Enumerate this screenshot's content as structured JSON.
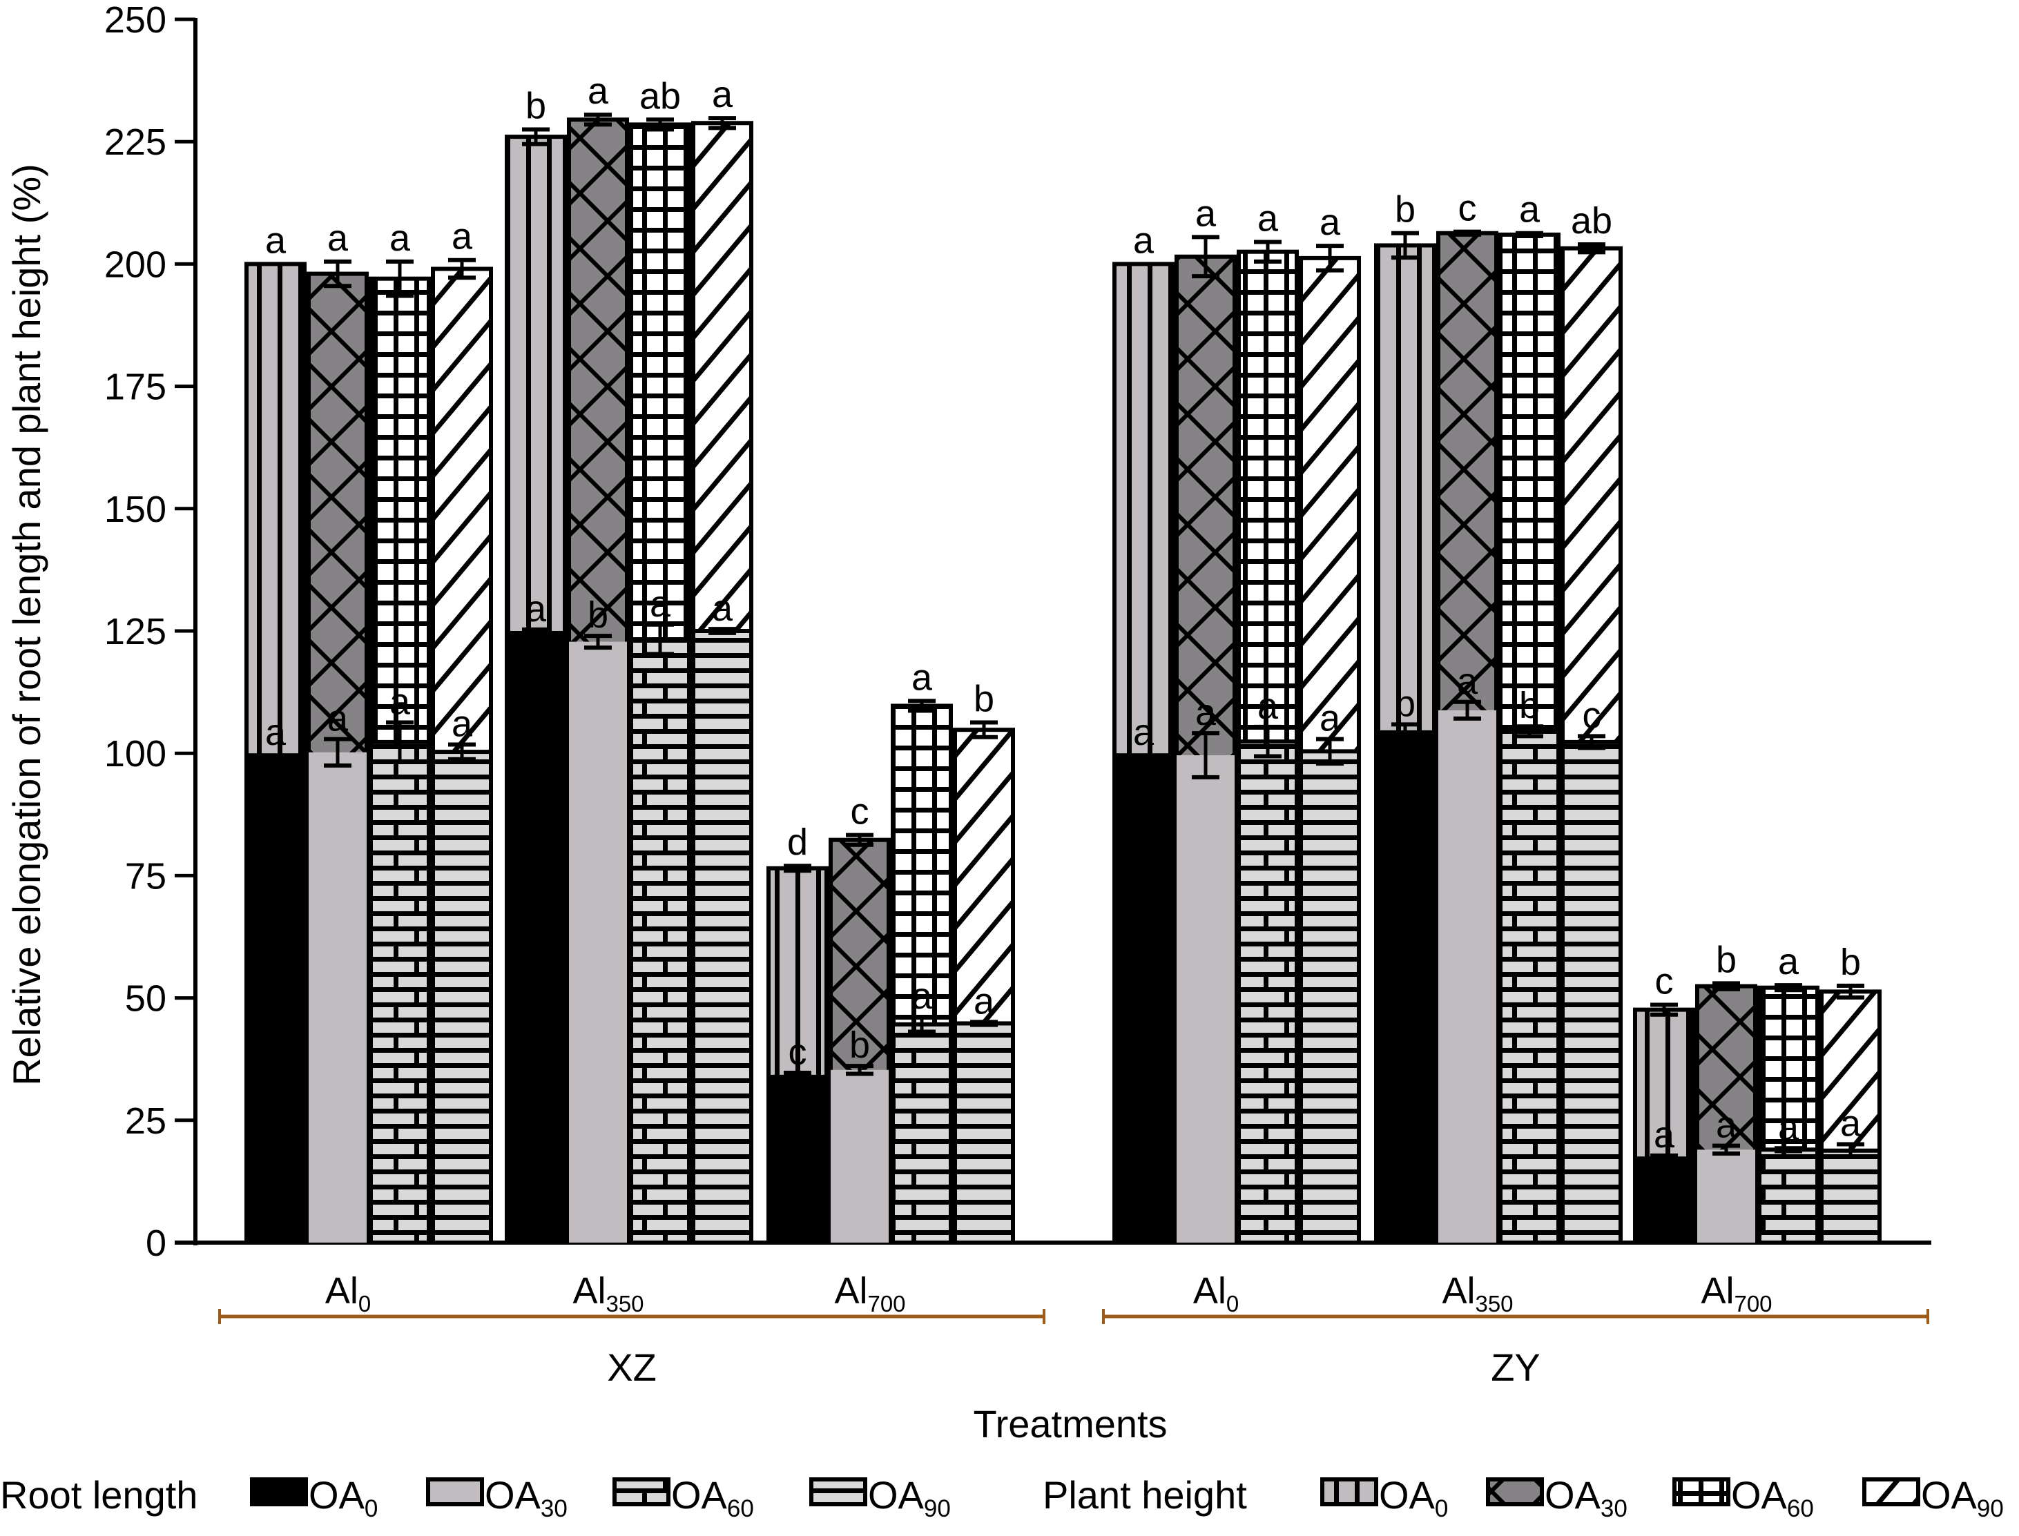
{
  "chart_data": {
    "type": "bar",
    "subtype": "grouped-overlapping",
    "title": "",
    "ylabel": "Relative elongation of root length and plant height (%)",
    "xlabel": "Treatments",
    "ylim": [
      0,
      250
    ],
    "yticks": [
      0,
      25,
      50,
      75,
      100,
      125,
      150,
      175,
      200,
      225,
      250
    ],
    "grid": false,
    "legend_position": "bottom",
    "cultivars": [
      {
        "name": "XZ",
        "categories": [
          {
            "base": "Al",
            "sub": "0"
          },
          {
            "base": "Al",
            "sub": "350"
          },
          {
            "base": "Al",
            "sub": "700"
          }
        ]
      },
      {
        "name": "ZY",
        "categories": [
          {
            "base": "Al",
            "sub": "0"
          },
          {
            "base": "Al",
            "sub": "350"
          },
          {
            "base": "Al",
            "sub": "700"
          }
        ]
      }
    ],
    "oa_levels": [
      {
        "base": "OA",
        "sub": "0"
      },
      {
        "base": "OA",
        "sub": "30"
      },
      {
        "base": "OA",
        "sub": "60"
      },
      {
        "base": "OA",
        "sub": "90"
      }
    ],
    "series": [
      {
        "name": "Plant height",
        "note": "Bars drawn behind root length bars",
        "values": [
          [
            [
              200,
              198,
              197,
              199
            ],
            [
              226,
              229.5,
              228.5,
              228.8
            ],
            [
              76.5,
              82.3,
              109.7,
              104.8
            ]
          ],
          [
            [
              200,
              201.5,
              202.5,
              201.2
            ],
            [
              203.8,
              206.3,
              206,
              203.2
            ],
            [
              47.6,
              52.4,
              52.1,
              51.3
            ]
          ]
        ],
        "errors": [
          [
            [
              0,
              2.5,
              3.5,
              1.8
            ],
            [
              1.5,
              1,
              1,
              1
            ],
            [
              0.5,
              1,
              1,
              1.5
            ]
          ],
          [
            [
              0,
              4,
              2,
              2.5
            ],
            [
              2.5,
              0.3,
              0.3,
              0.8
            ],
            [
              1,
              0.6,
              0.5,
              1.2
            ]
          ]
        ],
        "letters": [
          [
            [
              "a",
              "a",
              "a",
              "a"
            ],
            [
              "b",
              "a",
              "ab",
              "a"
            ],
            [
              "d",
              "c",
              "a",
              "b"
            ]
          ],
          [
            [
              "a",
              "a",
              "a",
              "a"
            ],
            [
              "b",
              "c",
              "a",
              "ab"
            ],
            [
              "c",
              "b",
              "a",
              "b"
            ]
          ]
        ]
      },
      {
        "name": "Root length",
        "values": [
          [
            [
              100,
              100.2,
              102.3,
              100.3
            ],
            [
              125,
              122.8,
              123.3,
              125
            ],
            [
              34.3,
              35.3,
              44.6,
              44.8
            ]
          ],
          [
            [
              100,
              99.6,
              102.4,
              100.4
            ],
            [
              104.7,
              108.8,
              104.5,
              102.3
            ],
            [
              17.6,
              19,
              19,
              18.8
            ]
          ]
        ],
        "errors": [
          [
            [
              0,
              2.7,
              4,
              1.5
            ],
            [
              0.3,
              1.2,
              3,
              0.4
            ],
            [
              0.4,
              0.8,
              1.5,
              0.3
            ]
          ],
          [
            [
              0,
              4.5,
              3,
              2.5
            ],
            [
              1.2,
              1.7,
              1,
              1.2
            ],
            [
              0.2,
              0.8,
              0.3,
              1.3
            ]
          ]
        ],
        "letters": [
          [
            [
              "a",
              "a",
              "a",
              "a"
            ],
            [
              "a",
              "b",
              "a",
              "a"
            ],
            [
              "c",
              "b",
              "a",
              "a"
            ]
          ],
          [
            [
              "a",
              "a",
              "a",
              "a"
            ],
            [
              "b",
              "a",
              "b",
              "c"
            ],
            [
              "a",
              "a",
              "a",
              "a"
            ]
          ]
        ]
      }
    ],
    "legend": {
      "root_label": "Root length",
      "plant_label": "Plant height",
      "root_items": [
        {
          "base": "OA",
          "sub": "0",
          "pattern": "solid-black"
        },
        {
          "base": "OA",
          "sub": "30",
          "pattern": "solid-gray"
        },
        {
          "base": "OA",
          "sub": "60",
          "pattern": "brick"
        },
        {
          "base": "OA",
          "sub": "90",
          "pattern": "horizontal-lines"
        }
      ],
      "plant_items": [
        {
          "base": "OA",
          "sub": "0",
          "pattern": "vertical-lines"
        },
        {
          "base": "OA",
          "sub": "30",
          "pattern": "crosshatch"
        },
        {
          "base": "OA",
          "sub": "60",
          "pattern": "grid"
        },
        {
          "base": "OA",
          "sub": "90",
          "pattern": "diagonal"
        }
      ]
    },
    "colors": {
      "black": "#000000",
      "light_gray": "#C0BCBF",
      "dark_gray": "#858385",
      "brick_gray": "#D9D9D9",
      "bracket": "#9C5B16"
    }
  }
}
